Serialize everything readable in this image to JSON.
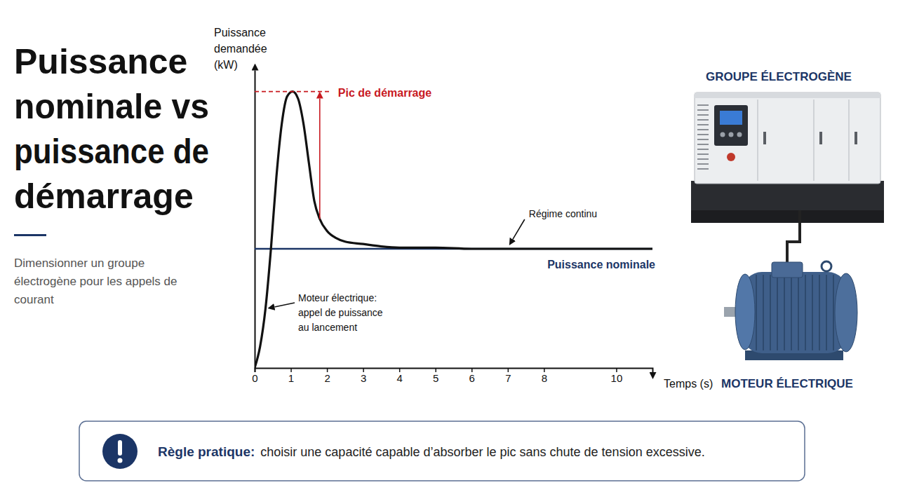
{
  "chart_data": {
    "type": "line",
    "title": "Puissance nominale vs puissance de démarrage",
    "subtitle": "Dimensionner un groupe électrogène pour les appels de courant",
    "y_label": "Puissance demandée (kW)",
    "x_label": "Temps (s)",
    "x": [
      0,
      0.15,
      0.3,
      0.45,
      0.6,
      0.75,
      0.9,
      1.05,
      1.2,
      1.35,
      1.5,
      1.65,
      1.8,
      2,
      2.25,
      2.5,
      3,
      3.5,
      4,
      5,
      6,
      7,
      8,
      9,
      10,
      11
    ],
    "values": [
      0,
      18,
      50,
      100,
      160,
      205,
      228,
      232,
      226,
      205,
      172,
      140,
      125,
      115,
      109,
      106,
      104,
      102,
      101,
      101,
      100,
      100,
      100,
      100,
      100,
      100
    ],
    "color": "#111111",
    "xlim": [
      0,
      11
    ],
    "ylim": [
      0,
      250
    ],
    "xticks": [
      0,
      1,
      2,
      3,
      4,
      5,
      6,
      7,
      8,
      10
    ],
    "tick_labels": "x",
    "nominal": {
      "label": "Puissance nominale",
      "value": 100,
      "color": "#1b3566"
    },
    "peak": {
      "label": "Pic de démarrage",
      "color": "#c8191f"
    },
    "annotations": {
      "continuous": "Régime continu",
      "startup": "Moteur électrique: appel de puissance au lancement"
    },
    "devices": {
      "generator": "GROUPE ÉLECTROGÈNE",
      "motor": "MOTEUR ÉLECTRIQUE"
    },
    "rule": {
      "label": "Règle pratique:",
      "text": "choisir une capacité capable d’absorber le pic sans chute de tension excessive."
    }
  }
}
